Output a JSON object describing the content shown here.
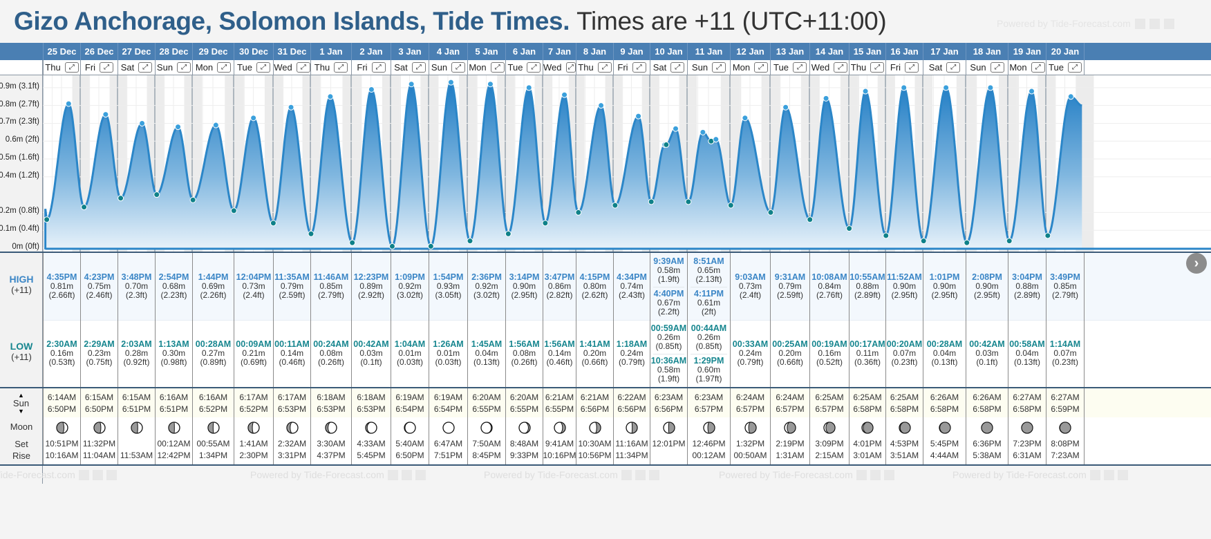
{
  "header": {
    "title": "Gizo Anchorage, Solomon Islands, Tide Times.",
    "subtitle": "Times are +11 (UTC+11:00)",
    "powered_by": "Powered by Tide-Forecast.com"
  },
  "labels": {
    "high": "HIGH",
    "high_tz": "(+11)",
    "low": "LOW",
    "low_tz": "(+11)",
    "sun": "Sun",
    "moon": "Moon",
    "moon_set": "Set",
    "moon_rise": "Rise",
    "expand_glyph": "⤢",
    "next_glyph": "›"
  },
  "icons": {
    "expand": "expand-icon",
    "next": "chevron-right-icon",
    "sun_updown": "sun-updown-icon",
    "moon_phase": "moon-phase-icon"
  },
  "colors": {
    "header_blue": "#4a7fb3",
    "title_blue": "#2f5f8a",
    "high_text": "#3b86c6",
    "low_text": "#17868f",
    "tide_line": "#2b86c8",
    "high_dot": "#3ba0dc",
    "low_dot": "#0f8189"
  },
  "chart_data": {
    "type": "area",
    "title": "Tide height",
    "ylabel": "Tide height",
    "ylim": [
      0,
      0.95
    ],
    "y_ticks": [
      {
        "value": 0.0,
        "label": "0m (0ft)"
      },
      {
        "value": 0.1,
        "label": "0.1m (0.4ft)"
      },
      {
        "value": 0.2,
        "label": "0.2m (0.8ft)"
      },
      {
        "value": 0.4,
        "label": "0.4m (1.2ft)"
      },
      {
        "value": 0.5,
        "label": "0.5m (1.6ft)"
      },
      {
        "value": 0.6,
        "label": "0.6m (2ft)"
      },
      {
        "value": 0.7,
        "label": "0.7m (2.3ft)"
      },
      {
        "value": 0.8,
        "label": "0.8m (2.7ft)"
      },
      {
        "value": 0.9,
        "label": "0.9m (3.1ft)"
      }
    ],
    "grid": true,
    "x_unit": "hours since 25 Dec 00:00 (+11)",
    "days": [
      {
        "date": "25 Dec",
        "dow": "Thu"
      },
      {
        "date": "26 Dec",
        "dow": "Fri"
      },
      {
        "date": "27 Dec",
        "dow": "Sat"
      },
      {
        "date": "28 Dec",
        "dow": "Sun"
      },
      {
        "date": "29 Dec",
        "dow": "Mon"
      },
      {
        "date": "30 Dec",
        "dow": "Tue"
      },
      {
        "date": "31 Dec",
        "dow": "Wed"
      },
      {
        "date": "1 Jan",
        "dow": "Thu"
      },
      {
        "date": "2 Jan",
        "dow": "Fri"
      },
      {
        "date": "3 Jan",
        "dow": "Sat"
      },
      {
        "date": "4 Jan",
        "dow": "Sun"
      },
      {
        "date": "5 Jan",
        "dow": "Mon"
      },
      {
        "date": "6 Jan",
        "dow": "Tue"
      },
      {
        "date": "7 Jan",
        "dow": "Wed"
      },
      {
        "date": "8 Jan",
        "dow": "Thu"
      },
      {
        "date": "9 Jan",
        "dow": "Fri"
      },
      {
        "date": "10 Jan",
        "dow": "Sat"
      },
      {
        "date": "11 Jan",
        "dow": "Sun"
      },
      {
        "date": "12 Jan",
        "dow": "Mon"
      },
      {
        "date": "13 Jan",
        "dow": "Tue"
      },
      {
        "date": "14 Jan",
        "dow": "Wed"
      },
      {
        "date": "15 Jan",
        "dow": "Thu"
      },
      {
        "date": "16 Jan",
        "dow": "Fri"
      },
      {
        "date": "17 Jan",
        "dow": "Sat"
      },
      {
        "date": "18 Jan",
        "dow": "Sun"
      },
      {
        "date": "19 Jan",
        "dow": "Mon"
      },
      {
        "date": "20 Jan",
        "dow": "Tue"
      }
    ]
  },
  "tides": [
    {
      "high": [
        {
          "time": "4:35PM",
          "m": "0.81m",
          "ft": "(2.66ft)"
        }
      ],
      "low": [
        {
          "time": "2:30AM",
          "m": "0.16m",
          "ft": "(0.53ft)"
        }
      ]
    },
    {
      "high": [
        {
          "time": "4:23PM",
          "m": "0.75m",
          "ft": "(2.46ft)"
        }
      ],
      "low": [
        {
          "time": "2:29AM",
          "m": "0.23m",
          "ft": "(0.75ft)"
        }
      ]
    },
    {
      "high": [
        {
          "time": "3:48PM",
          "m": "0.70m",
          "ft": "(2.3ft)"
        }
      ],
      "low": [
        {
          "time": "2:03AM",
          "m": "0.28m",
          "ft": "(0.92ft)"
        }
      ]
    },
    {
      "high": [
        {
          "time": "2:54PM",
          "m": "0.68m",
          "ft": "(2.23ft)"
        }
      ],
      "low": [
        {
          "time": "1:13AM",
          "m": "0.30m",
          "ft": "(0.98ft)"
        }
      ]
    },
    {
      "high": [
        {
          "time": "1:44PM",
          "m": "0.69m",
          "ft": "(2.26ft)"
        }
      ],
      "low": [
        {
          "time": "00:28AM",
          "m": "0.27m",
          "ft": "(0.89ft)"
        }
      ]
    },
    {
      "high": [
        {
          "time": "12:04PM",
          "m": "0.73m",
          "ft": "(2.4ft)"
        }
      ],
      "low": [
        {
          "time": "00:09AM",
          "m": "0.21m",
          "ft": "(0.69ft)"
        }
      ]
    },
    {
      "high": [
        {
          "time": "11:35AM",
          "m": "0.79m",
          "ft": "(2.59ft)"
        }
      ],
      "low": [
        {
          "time": "00:11AM",
          "m": "0.14m",
          "ft": "(0.46ft)"
        }
      ]
    },
    {
      "high": [
        {
          "time": "11:46AM",
          "m": "0.85m",
          "ft": "(2.79ft)"
        }
      ],
      "low": [
        {
          "time": "00:24AM",
          "m": "0.08m",
          "ft": "(0.26ft)"
        }
      ]
    },
    {
      "high": [
        {
          "time": "12:23PM",
          "m": "0.89m",
          "ft": "(2.92ft)"
        }
      ],
      "low": [
        {
          "time": "00:42AM",
          "m": "0.03m",
          "ft": "(0.1ft)"
        }
      ]
    },
    {
      "high": [
        {
          "time": "1:09PM",
          "m": "0.92m",
          "ft": "(3.02ft)"
        }
      ],
      "low": [
        {
          "time": "1:04AM",
          "m": "0.01m",
          "ft": "(0.03ft)"
        }
      ]
    },
    {
      "high": [
        {
          "time": "1:54PM",
          "m": "0.93m",
          "ft": "(3.05ft)"
        }
      ],
      "low": [
        {
          "time": "1:26AM",
          "m": "0.01m",
          "ft": "(0.03ft)"
        }
      ]
    },
    {
      "high": [
        {
          "time": "2:36PM",
          "m": "0.92m",
          "ft": "(3.02ft)"
        }
      ],
      "low": [
        {
          "time": "1:45AM",
          "m": "0.04m",
          "ft": "(0.13ft)"
        }
      ]
    },
    {
      "high": [
        {
          "time": "3:14PM",
          "m": "0.90m",
          "ft": "(2.95ft)"
        }
      ],
      "low": [
        {
          "time": "1:56AM",
          "m": "0.08m",
          "ft": "(0.26ft)"
        }
      ]
    },
    {
      "high": [
        {
          "time": "3:47PM",
          "m": "0.86m",
          "ft": "(2.82ft)"
        }
      ],
      "low": [
        {
          "time": "1:56AM",
          "m": "0.14m",
          "ft": "(0.46ft)"
        }
      ]
    },
    {
      "high": [
        {
          "time": "4:15PM",
          "m": "0.80m",
          "ft": "(2.62ft)"
        }
      ],
      "low": [
        {
          "time": "1:41AM",
          "m": "0.20m",
          "ft": "(0.66ft)"
        }
      ]
    },
    {
      "high": [
        {
          "time": "4:34PM",
          "m": "0.74m",
          "ft": "(2.43ft)"
        }
      ],
      "low": [
        {
          "time": "1:18AM",
          "m": "0.24m",
          "ft": "(0.79ft)"
        }
      ]
    },
    {
      "high": [
        {
          "time": "9:39AM",
          "m": "0.58m",
          "ft": "(1.9ft)"
        },
        {
          "time": "4:40PM",
          "m": "0.67m",
          "ft": "(2.2ft)"
        }
      ],
      "low": [
        {
          "time": "00:59AM",
          "m": "0.26m",
          "ft": "(0.85ft)"
        },
        {
          "time": "10:36AM",
          "m": "0.58m",
          "ft": "(1.9ft)"
        }
      ]
    },
    {
      "high": [
        {
          "time": "8:51AM",
          "m": "0.65m",
          "ft": "(2.13ft)"
        },
        {
          "time": "4:11PM",
          "m": "0.61m",
          "ft": "(2ft)"
        }
      ],
      "low": [
        {
          "time": "00:44AM",
          "m": "0.26m",
          "ft": "(0.85ft)"
        },
        {
          "time": "1:29PM",
          "m": "0.60m",
          "ft": "(1.97ft)"
        }
      ]
    },
    {
      "high": [
        {
          "time": "9:03AM",
          "m": "0.73m",
          "ft": "(2.4ft)"
        }
      ],
      "low": [
        {
          "time": "00:33AM",
          "m": "0.24m",
          "ft": "(0.79ft)"
        }
      ]
    },
    {
      "high": [
        {
          "time": "9:31AM",
          "m": "0.79m",
          "ft": "(2.59ft)"
        }
      ],
      "low": [
        {
          "time": "00:25AM",
          "m": "0.20m",
          "ft": "(0.66ft)"
        }
      ]
    },
    {
      "high": [
        {
          "time": "10:08AM",
          "m": "0.84m",
          "ft": "(2.76ft)"
        }
      ],
      "low": [
        {
          "time": "00:19AM",
          "m": "0.16m",
          "ft": "(0.52ft)"
        }
      ]
    },
    {
      "high": [
        {
          "time": "10:55AM",
          "m": "0.88m",
          "ft": "(2.89ft)"
        }
      ],
      "low": [
        {
          "time": "00:17AM",
          "m": "0.11m",
          "ft": "(0.36ft)"
        }
      ]
    },
    {
      "high": [
        {
          "time": "11:52AM",
          "m": "0.90m",
          "ft": "(2.95ft)"
        }
      ],
      "low": [
        {
          "time": "00:20AM",
          "m": "0.07m",
          "ft": "(0.23ft)"
        }
      ]
    },
    {
      "high": [
        {
          "time": "1:01PM",
          "m": "0.90m",
          "ft": "(2.95ft)"
        }
      ],
      "low": [
        {
          "time": "00:28AM",
          "m": "0.04m",
          "ft": "(0.13ft)"
        }
      ]
    },
    {
      "high": [
        {
          "time": "2:08PM",
          "m": "0.90m",
          "ft": "(2.95ft)"
        }
      ],
      "low": [
        {
          "time": "00:42AM",
          "m": "0.03m",
          "ft": "(0.1ft)"
        }
      ]
    },
    {
      "high": [
        {
          "time": "3:04PM",
          "m": "0.88m",
          "ft": "(2.89ft)"
        }
      ],
      "low": [
        {
          "time": "00:58AM",
          "m": "0.04m",
          "ft": "(0.13ft)"
        }
      ]
    },
    {
      "high": [
        {
          "time": "3:49PM",
          "m": "0.85m",
          "ft": "(2.79ft)"
        }
      ],
      "low": [
        {
          "time": "1:14AM",
          "m": "0.07m",
          "ft": "(0.23ft)"
        }
      ]
    }
  ],
  "sun": [
    {
      "rise": "6:14AM",
      "set": "6:50PM"
    },
    {
      "rise": "6:15AM",
      "set": "6:50PM"
    },
    {
      "rise": "6:15AM",
      "set": "6:51PM"
    },
    {
      "rise": "6:16AM",
      "set": "6:51PM"
    },
    {
      "rise": "6:16AM",
      "set": "6:52PM"
    },
    {
      "rise": "6:17AM",
      "set": "6:52PM"
    },
    {
      "rise": "6:17AM",
      "set": "6:53PM"
    },
    {
      "rise": "6:18AM",
      "set": "6:53PM"
    },
    {
      "rise": "6:18AM",
      "set": "6:53PM"
    },
    {
      "rise": "6:19AM",
      "set": "6:54PM"
    },
    {
      "rise": "6:19AM",
      "set": "6:54PM"
    },
    {
      "rise": "6:20AM",
      "set": "6:55PM"
    },
    {
      "rise": "6:20AM",
      "set": "6:55PM"
    },
    {
      "rise": "6:21AM",
      "set": "6:55PM"
    },
    {
      "rise": "6:21AM",
      "set": "6:56PM"
    },
    {
      "rise": "6:22AM",
      "set": "6:56PM"
    },
    {
      "rise": "6:23AM",
      "set": "6:56PM"
    },
    {
      "rise": "6:23AM",
      "set": "6:57PM"
    },
    {
      "rise": "6:24AM",
      "set": "6:57PM"
    },
    {
      "rise": "6:24AM",
      "set": "6:57PM"
    },
    {
      "rise": "6:25AM",
      "set": "6:57PM"
    },
    {
      "rise": "6:25AM",
      "set": "6:58PM"
    },
    {
      "rise": "6:25AM",
      "set": "6:58PM"
    },
    {
      "rise": "6:26AM",
      "set": "6:58PM"
    },
    {
      "rise": "6:26AM",
      "set": "6:58PM"
    },
    {
      "rise": "6:27AM",
      "set": "6:58PM"
    },
    {
      "rise": "6:27AM",
      "set": "6:59PM"
    }
  ],
  "moon": [
    {
      "phase": 0.33,
      "set": "10:51PM",
      "rise": "10:16AM"
    },
    {
      "phase": 0.31,
      "set": "11:32PM",
      "rise": "11:04AM"
    },
    {
      "phase": 0.29,
      "set": "",
      "rise": "11:53AM"
    },
    {
      "phase": 0.26,
      "set": "00:12AM",
      "rise": "12:42PM"
    },
    {
      "phase": 0.23,
      "set": "00:55AM",
      "rise": "1:34PM"
    },
    {
      "phase": 0.19,
      "set": "1:41AM",
      "rise": "2:30PM"
    },
    {
      "phase": 0.15,
      "set": "2:32AM",
      "rise": "3:31PM"
    },
    {
      "phase": 0.11,
      "set": "3:30AM",
      "rise": "4:37PM"
    },
    {
      "phase": 0.07,
      "set": "4:33AM",
      "rise": "5:45PM"
    },
    {
      "phase": 0.03,
      "set": "5:40AM",
      "rise": "6:50PM"
    },
    {
      "phase": 0.0,
      "set": "6:47AM",
      "rise": "7:51PM"
    },
    {
      "phase": -0.04,
      "set": "7:50AM",
      "rise": "8:45PM"
    },
    {
      "phase": -0.08,
      "set": "8:48AM",
      "rise": "9:33PM"
    },
    {
      "phase": -0.13,
      "set": "9:41AM",
      "rise": "10:16PM"
    },
    {
      "phase": -0.18,
      "set": "10:30AM",
      "rise": "10:56PM"
    },
    {
      "phase": -0.23,
      "set": "11:16AM",
      "rise": "11:34PM"
    },
    {
      "phase": -0.27,
      "set": "12:01PM",
      "rise": ""
    },
    {
      "phase": -0.31,
      "set": "12:46PM",
      "rise": "00:12AM"
    },
    {
      "phase": -0.34,
      "set": "1:32PM",
      "rise": "00:50AM"
    },
    {
      "phase": -0.38,
      "set": "2:19PM",
      "rise": "1:31AM"
    },
    {
      "phase": -0.41,
      "set": "3:09PM",
      "rise": "2:15AM"
    },
    {
      "phase": -0.44,
      "set": "4:01PM",
      "rise": "3:01AM"
    },
    {
      "phase": -0.46,
      "set": "4:53PM",
      "rise": "3:51AM"
    },
    {
      "phase": -0.48,
      "set": "5:45PM",
      "rise": "4:44AM"
    },
    {
      "phase": -0.5,
      "set": "6:36PM",
      "rise": "5:38AM"
    },
    {
      "phase": -0.5,
      "set": "7:23PM",
      "rise": "6:31AM"
    },
    {
      "phase": -0.49,
      "set": "8:08PM",
      "rise": "7:23AM"
    }
  ]
}
